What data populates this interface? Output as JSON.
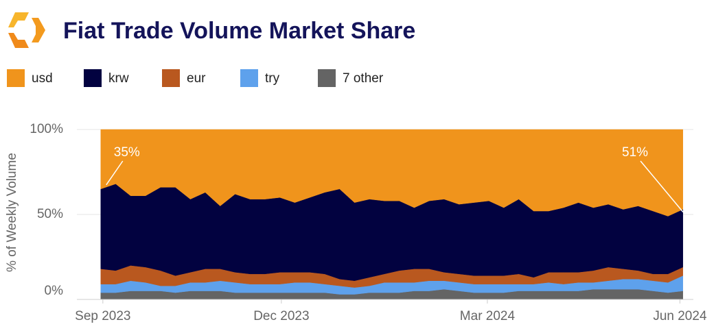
{
  "chart_data": {
    "type": "stacked_area_percent",
    "title": "Fiat Trade Volume Market Share",
    "y_label": "% of Weekly Volume",
    "x": [
      0,
      1,
      2,
      3,
      4,
      5,
      6,
      7,
      8,
      9,
      10,
      11,
      12,
      13,
      14,
      15,
      16,
      17,
      18,
      19,
      20,
      21,
      22,
      23,
      24,
      25,
      26,
      27,
      28,
      29,
      30,
      31,
      32,
      33,
      34,
      35,
      36,
      37,
      38,
      39
    ],
    "xlim": [
      -1.6,
      39.7
    ],
    "xticks": [
      {
        "value": 0.14,
        "label": "Sep 2023"
      },
      {
        "value": 12.1,
        "label": "Dec 2023"
      },
      {
        "value": 25.9,
        "label": "Mar 2024"
      },
      {
        "value": 38.8,
        "label": "Jun 2024"
      }
    ],
    "ylim": [
      0,
      100
    ],
    "yticks": [
      {
        "value": 0,
        "label": "0%"
      },
      {
        "value": 50,
        "label": "50%"
      },
      {
        "value": 100,
        "label": "100%"
      }
    ],
    "grid": true,
    "legend": "top-left",
    "series": [
      {
        "name": "usd",
        "color": "#f0941c",
        "values": [
          35,
          32,
          39,
          39,
          34,
          34,
          41,
          37,
          45,
          38,
          41,
          41,
          40,
          43,
          40,
          37,
          35,
          43,
          41,
          42,
          42,
          46,
          42,
          41,
          44,
          43,
          42,
          46,
          41,
          48,
          48,
          46,
          43,
          46,
          44,
          47,
          45,
          48,
          51,
          47
        ],
        "value_labels": [
          "35%",
          null,
          null,
          null,
          null,
          null,
          null,
          null,
          null,
          null,
          null,
          null,
          null,
          null,
          null,
          null,
          null,
          null,
          null,
          null,
          null,
          null,
          null,
          null,
          null,
          null,
          null,
          null,
          null,
          null,
          null,
          null,
          null,
          null,
          null,
          null,
          null,
          null,
          "51%",
          null
        ]
      },
      {
        "name": "krw",
        "color": "#020240",
        "values": [
          47,
          51,
          41,
          42,
          49,
          52,
          43,
          45,
          37,
          46,
          44,
          44,
          44,
          41,
          44,
          48,
          53,
          46,
          46,
          43,
          41,
          36,
          40,
          43,
          41,
          43,
          44,
          40,
          44,
          39,
          36,
          38,
          41,
          37,
          37,
          35,
          38,
          37,
          34,
          34
        ]
      },
      {
        "name": "eur",
        "color": "#b9581f",
        "values": [
          9,
          8,
          9,
          9,
          9,
          6,
          6,
          8,
          7,
          6,
          6,
          6,
          7,
          6,
          6,
          6,
          4,
          4,
          5,
          5,
          7,
          8,
          7,
          5,
          5,
          5,
          5,
          5,
          6,
          4,
          6,
          7,
          6,
          7,
          8,
          6,
          5,
          4,
          5,
          5
        ]
      },
      {
        "name": "try",
        "color": "#5ea1ec",
        "values": [
          5,
          5,
          6,
          5,
          3,
          4,
          5,
          5,
          6,
          6,
          5,
          5,
          5,
          6,
          6,
          5,
          5,
          4,
          4,
          6,
          6,
          5,
          6,
          5,
          5,
          5,
          5,
          5,
          4,
          4,
          5,
          4,
          5,
          4,
          5,
          6,
          6,
          6,
          6,
          9
        ]
      },
      {
        "name": "7 other",
        "color": "#646464",
        "values": [
          4,
          4,
          5,
          5,
          5,
          4,
          5,
          5,
          5,
          4,
          4,
          4,
          4,
          4,
          4,
          4,
          3,
          3,
          4,
          4,
          4,
          5,
          5,
          6,
          5,
          4,
          4,
          4,
          5,
          5,
          5,
          5,
          5,
          6,
          6,
          6,
          6,
          5,
          4,
          5
        ]
      }
    ]
  }
}
